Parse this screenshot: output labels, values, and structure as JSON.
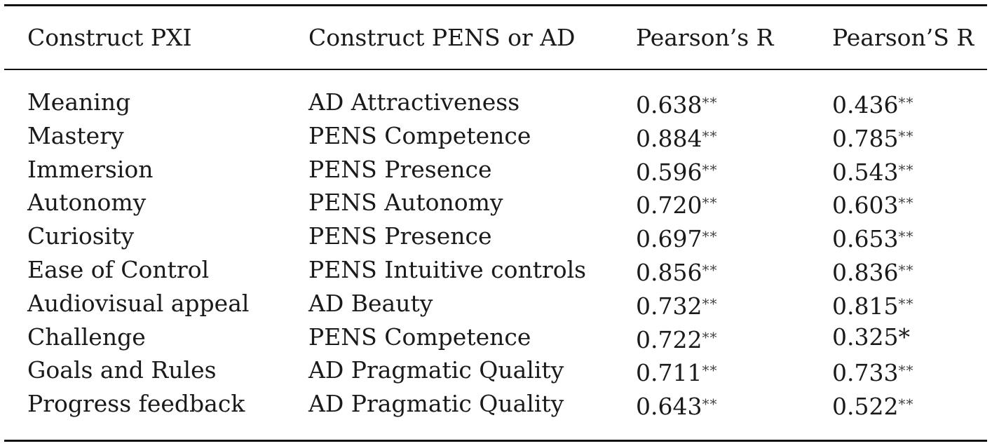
{
  "table": {
    "headers": [
      "Construct PXI",
      "Construct PENS or AD",
      "Pearson’s R",
      "Pearson’S R"
    ],
    "rows": [
      {
        "pxi": "Meaning",
        "pens_ad": "AD Attractiveness",
        "r1": "0.638",
        "r1_sig": "**",
        "r2": "0.436",
        "r2_sig": "**"
      },
      {
        "pxi": "Mastery",
        "pens_ad": "PENS Competence",
        "r1": "0.884",
        "r1_sig": "**",
        "r2": "0.785",
        "r2_sig": "**"
      },
      {
        "pxi": "Immersion",
        "pens_ad": "PENS Presence",
        "r1": "0.596",
        "r1_sig": "**",
        "r2": "0.543",
        "r2_sig": "**"
      },
      {
        "pxi": "Autonomy",
        "pens_ad": "PENS Autonomy",
        "r1": "0.720",
        "r1_sig": "**",
        "r2": "0.603",
        "r2_sig": "**"
      },
      {
        "pxi": "Curiosity",
        "pens_ad": "PENS Presence",
        "r1": "0.697",
        "r1_sig": "**",
        "r2": "0.653",
        "r2_sig": "**"
      },
      {
        "pxi": "Ease of Control",
        "pens_ad": "PENS Intuitive controls",
        "r1": "0.856",
        "r1_sig": "**",
        "r2": "0.836",
        "r2_sig": "**"
      },
      {
        "pxi": "Audiovisual appeal",
        "pens_ad": "AD Beauty",
        "r1": "0.732",
        "r1_sig": "**",
        "r2": "0.815",
        "r2_sig": "**"
      },
      {
        "pxi": "Challenge",
        "pens_ad": "PENS Competence",
        "r1": "0.722",
        "r1_sig": "**",
        "r2": "0.325",
        "r2_sig": "*"
      },
      {
        "pxi": "Goals and Rules",
        "pens_ad": "AD Pragmatic Quality",
        "r1": "0.711",
        "r1_sig": "**",
        "r2": "0.733",
        "r2_sig": "**"
      },
      {
        "pxi": "Progress feedback",
        "pens_ad": "AD Pragmatic Quality",
        "r1": "0.643",
        "r1_sig": "**",
        "r2": "0.522",
        "r2_sig": "**"
      }
    ]
  }
}
